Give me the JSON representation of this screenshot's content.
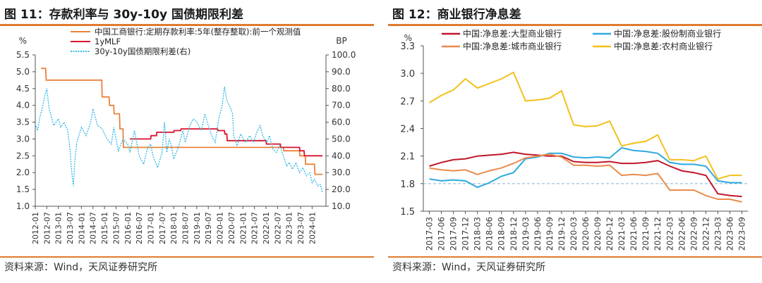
{
  "left": {
    "title": "图 11：存款利率与 30y-10y 国债期限利差",
    "source": "资料来源：Wind，天风证券研究所",
    "chart_data": {
      "type": "line",
      "y_left_unit": "%",
      "y_right_unit": "BP",
      "ylim_left": [
        1.0,
        5.5
      ],
      "ylim_right": [
        10.0,
        100.0
      ],
      "yticks_left": [
        "1.0",
        "1.5",
        "2.0",
        "2.5",
        "3.0",
        "3.5",
        "4.0",
        "4.5",
        "5.0",
        "5.5"
      ],
      "yticks_right": [
        "10.0",
        "20.0",
        "30.0",
        "40.0",
        "50.0",
        "60.0",
        "70.0",
        "80.0",
        "90.0",
        "100.0"
      ],
      "xlim": [
        2012.0,
        2024.6
      ],
      "xticks": [
        "2012-01",
        "2012-07",
        "2013-01",
        "2013-07",
        "2014-01",
        "2014-07",
        "2015-01",
        "2015-07",
        "2016-01",
        "2016-07",
        "2017-01",
        "2017-07",
        "2018-01",
        "2018-07",
        "2019-01",
        "2019-07",
        "2020-01",
        "2020-07",
        "2021-01",
        "2021-07",
        "2022-01",
        "2022-07",
        "2023-01",
        "2023-07",
        "2024-01"
      ],
      "series": [
        {
          "name": "中国工商银行:定期存款利率:5年(整存整取):前一个观测值",
          "color": "#e8823a",
          "axis": "left",
          "step": true,
          "points": [
            [
              2012.25,
              5.1
            ],
            [
              2012.45,
              5.1
            ],
            [
              2012.47,
              4.75
            ],
            [
              2014.88,
              4.75
            ],
            [
              2014.9,
              4.25
            ],
            [
              2015.2,
              4.25
            ],
            [
              2015.22,
              4.0
            ],
            [
              2015.4,
              4.0
            ],
            [
              2015.42,
              3.75
            ],
            [
              2015.65,
              3.75
            ],
            [
              2015.67,
              3.3
            ],
            [
              2015.8,
              3.3
            ],
            [
              2015.82,
              2.75
            ],
            [
              2022.75,
              2.75
            ],
            [
              2022.77,
              2.65
            ],
            [
              2023.45,
              2.65
            ],
            [
              2023.47,
              2.5
            ],
            [
              2023.7,
              2.5
            ],
            [
              2023.72,
              2.25
            ],
            [
              2024.1,
              2.25
            ],
            [
              2024.12,
              1.95
            ],
            [
              2024.45,
              1.95
            ]
          ]
        },
        {
          "name": "1yMLF",
          "color": "#d8102a",
          "axis": "left",
          "step": true,
          "points": [
            [
              2016.1,
              3.0
            ],
            [
              2017.0,
              3.0
            ],
            [
              2017.02,
              3.1
            ],
            [
              2017.25,
              3.1
            ],
            [
              2017.27,
              3.2
            ],
            [
              2018.0,
              3.2
            ],
            [
              2018.02,
              3.25
            ],
            [
              2018.3,
              3.25
            ],
            [
              2018.32,
              3.3
            ],
            [
              2019.9,
              3.3
            ],
            [
              2019.92,
              3.25
            ],
            [
              2020.2,
              3.25
            ],
            [
              2020.22,
              3.15
            ],
            [
              2020.3,
              3.15
            ],
            [
              2020.32,
              2.95
            ],
            [
              2022.0,
              2.95
            ],
            [
              2022.02,
              2.85
            ],
            [
              2022.62,
              2.85
            ],
            [
              2022.64,
              2.75
            ],
            [
              2023.45,
              2.75
            ],
            [
              2023.47,
              2.65
            ],
            [
              2023.65,
              2.65
            ],
            [
              2023.67,
              2.5
            ],
            [
              2024.45,
              2.5
            ]
          ]
        },
        {
          "name": "30y-10y国债期限利差(右)",
          "color": "#30b8e6",
          "axis": "right",
          "dashed": true,
          "points": [
            [
              2012.0,
              59
            ],
            [
              2012.1,
              55
            ],
            [
              2012.2,
              63
            ],
            [
              2012.3,
              68
            ],
            [
              2012.4,
              75
            ],
            [
              2012.5,
              80
            ],
            [
              2012.6,
              68
            ],
            [
              2012.7,
              63
            ],
            [
              2012.8,
              58
            ],
            [
              2013.0,
              62
            ],
            [
              2013.1,
              57
            ],
            [
              2013.25,
              60
            ],
            [
              2013.4,
              55
            ],
            [
              2013.5,
              45
            ],
            [
              2013.55,
              35
            ],
            [
              2013.6,
              28
            ],
            [
              2013.65,
              22
            ],
            [
              2013.7,
              35
            ],
            [
              2013.8,
              48
            ],
            [
              2014.0,
              57
            ],
            [
              2014.2,
              52
            ],
            [
              2014.4,
              60
            ],
            [
              2014.5,
              68
            ],
            [
              2014.7,
              58
            ],
            [
              2014.9,
              56
            ],
            [
              2015.1,
              50
            ],
            [
              2015.3,
              47
            ],
            [
              2015.4,
              57
            ],
            [
              2015.5,
              50
            ],
            [
              2015.6,
              43
            ],
            [
              2015.8,
              50
            ],
            [
              2016.0,
              47
            ],
            [
              2016.1,
              42
            ],
            [
              2016.3,
              55
            ],
            [
              2016.5,
              40
            ],
            [
              2016.7,
              35
            ],
            [
              2016.85,
              44
            ],
            [
              2017.0,
              47
            ],
            [
              2017.1,
              40
            ],
            [
              2017.3,
              33
            ],
            [
              2017.5,
              42
            ],
            [
              2017.6,
              60
            ],
            [
              2017.7,
              42
            ],
            [
              2017.8,
              50
            ],
            [
              2017.9,
              46
            ],
            [
              2018.0,
              38
            ],
            [
              2018.2,
              45
            ],
            [
              2018.4,
              55
            ],
            [
              2018.5,
              48
            ],
            [
              2018.7,
              58
            ],
            [
              2018.85,
              62
            ],
            [
              2019.0,
              60
            ],
            [
              2019.2,
              55
            ],
            [
              2019.35,
              65
            ],
            [
              2019.5,
              58
            ],
            [
              2019.65,
              52
            ],
            [
              2019.8,
              48
            ],
            [
              2019.95,
              62
            ],
            [
              2020.1,
              70
            ],
            [
              2020.2,
              81
            ],
            [
              2020.3,
              73
            ],
            [
              2020.45,
              69
            ],
            [
              2020.55,
              65
            ],
            [
              2020.6,
              52
            ],
            [
              2020.75,
              46
            ],
            [
              2020.9,
              53
            ],
            [
              2021.1,
              48
            ],
            [
              2021.3,
              52
            ],
            [
              2021.45,
              48
            ],
            [
              2021.6,
              54
            ],
            [
              2021.75,
              58
            ],
            [
              2021.85,
              52
            ],
            [
              2021.95,
              50
            ],
            [
              2022.05,
              48
            ],
            [
              2022.15,
              52
            ],
            [
              2022.3,
              44
            ],
            [
              2022.45,
              42
            ],
            [
              2022.6,
              46
            ],
            [
              2022.75,
              40
            ],
            [
              2022.9,
              34
            ],
            [
              2023.0,
              36
            ],
            [
              2023.15,
              32
            ],
            [
              2023.3,
              36
            ],
            [
              2023.45,
              30
            ],
            [
              2023.6,
              33
            ],
            [
              2023.75,
              28
            ],
            [
              2023.9,
              30
            ],
            [
              2024.0,
              24
            ],
            [
              2024.1,
              26
            ],
            [
              2024.25,
              22
            ],
            [
              2024.35,
              23
            ],
            [
              2024.45,
              18
            ]
          ]
        }
      ],
      "legend_position": "top-right"
    }
  },
  "right": {
    "title": "图 12：商业银行净息差",
    "source": "资料来源：Wind，天风证券研究所",
    "chart_data": {
      "type": "line",
      "y_unit": "%",
      "ylim": [
        1.5,
        3.3
      ],
      "yticks": [
        "3.3",
        "3.0",
        "2.7",
        "2.4",
        "2.1",
        "1.8",
        "1.5"
      ],
      "reference_line": 1.8,
      "categories": [
        "2017-03",
        "2017-06",
        "2017-09",
        "2017-12",
        "2018-03",
        "2018-06",
        "2018-09",
        "2018-12",
        "2019-03",
        "2019-06",
        "2019-09",
        "2019-12",
        "2020-03",
        "2020-06",
        "2020-09",
        "2020-12",
        "2021-03",
        "2021-06",
        "2021-09",
        "2021-12",
        "2022-03",
        "2022-06",
        "2022-09",
        "2022-12",
        "2023-03",
        "2023-06",
        "2023-09"
      ],
      "series": [
        {
          "name": "中国:净息差:大型商业银行",
          "color": "#c0172a",
          "values": [
            1.99,
            2.03,
            2.06,
            2.07,
            2.1,
            2.11,
            2.12,
            2.14,
            2.12,
            2.11,
            2.1,
            2.1,
            2.04,
            2.03,
            2.03,
            2.04,
            2.02,
            2.02,
            2.03,
            2.05,
            1.99,
            1.94,
            1.92,
            1.89,
            1.69,
            1.67,
            1.66
          ]
        },
        {
          "name": "中国:净息差:股份制商业银行",
          "color": "#2fa9df",
          "values": [
            1.85,
            1.83,
            1.84,
            1.83,
            1.76,
            1.81,
            1.88,
            1.92,
            2.07,
            2.09,
            2.13,
            2.13,
            2.09,
            2.08,
            2.09,
            2.08,
            2.19,
            2.16,
            2.15,
            2.13,
            2.03,
            2.01,
            2.01,
            1.99,
            1.83,
            1.81,
            1.81
          ]
        },
        {
          "name": "中国:净息差:城市商业银行",
          "color": "#ea8b4c",
          "values": [
            1.97,
            1.95,
            1.94,
            1.95,
            1.9,
            1.94,
            1.97,
            2.02,
            2.08,
            2.1,
            2.12,
            2.09,
            2.0,
            2.0,
            1.99,
            2.0,
            1.89,
            1.9,
            1.89,
            1.91,
            1.73,
            1.73,
            1.73,
            1.67,
            1.63,
            1.63,
            1.6
          ]
        },
        {
          "name": "中国:净息差:农村商业银行",
          "color": "#f3c01b",
          "values": [
            2.68,
            2.76,
            2.82,
            2.94,
            2.84,
            2.89,
            2.94,
            3.01,
            2.7,
            2.71,
            2.73,
            2.81,
            2.44,
            2.42,
            2.43,
            2.48,
            2.21,
            2.24,
            2.26,
            2.33,
            2.06,
            2.06,
            2.05,
            2.1,
            1.85,
            1.89,
            1.89
          ]
        }
      ],
      "legend_position": "top"
    }
  }
}
